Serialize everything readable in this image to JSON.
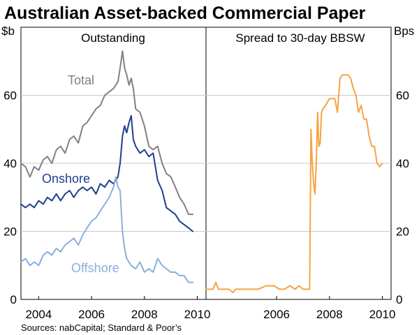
{
  "chart_data": {
    "type": "line",
    "title": "Australian Asset-backed Commercial Paper",
    "source": "Sources: nabCapital; Standard & Poor’s",
    "left_unit": "$b",
    "right_unit": "Bps",
    "y_ticks": [
      "0",
      "20",
      "40",
      "60"
    ],
    "y_tick_values": [
      0,
      20,
      40,
      60
    ],
    "ylim": [
      0,
      80
    ],
    "panels": [
      {
        "title": "Outstanding",
        "xlim": [
          2003.33,
          2010.33
        ],
        "x_ticks": [
          "2004",
          "2006",
          "2008",
          "2010"
        ],
        "x_tick_values": [
          2004,
          2006,
          2008,
          2010
        ],
        "series": [
          {
            "name": "Total",
            "color": "#808080",
            "x": [
              2003.33,
              2003.5,
              2003.67,
              2003.83,
              2004.0,
              2004.17,
              2004.33,
              2004.5,
              2004.67,
              2004.83,
              2005.0,
              2005.17,
              2005.33,
              2005.5,
              2005.67,
              2005.83,
              2006.0,
              2006.17,
              2006.33,
              2006.5,
              2006.67,
              2006.83,
              2007.0,
              2007.08,
              2007.17,
              2007.25,
              2007.33,
              2007.42,
              2007.5,
              2007.58,
              2007.67,
              2007.83,
              2008.0,
              2008.17,
              2008.33,
              2008.5,
              2008.67,
              2008.83,
              2009.0,
              2009.17,
              2009.33,
              2009.5,
              2009.67,
              2009.83
            ],
            "values": [
              40,
              39,
              36,
              39,
              38,
              41,
              42,
              40,
              44,
              45,
              43,
              47,
              48,
              46,
              51,
              52,
              54,
              56,
              57,
              60,
              61,
              62,
              64,
              68,
              73,
              68,
              66,
              63,
              65,
              62,
              56,
              55,
              51,
              45,
              44,
              45,
              40,
              37,
              36,
              33,
              30,
              28,
              25,
              25
            ]
          },
          {
            "name": "Onshore",
            "color": "#1f3d8f",
            "x": [
              2003.33,
              2003.5,
              2003.67,
              2003.83,
              2004.0,
              2004.17,
              2004.33,
              2004.5,
              2004.67,
              2004.83,
              2005.0,
              2005.17,
              2005.33,
              2005.5,
              2005.67,
              2005.83,
              2006.0,
              2006.17,
              2006.33,
              2006.5,
              2006.67,
              2006.83,
              2007.0,
              2007.08,
              2007.17,
              2007.25,
              2007.33,
              2007.42,
              2007.5,
              2007.58,
              2007.67,
              2007.83,
              2008.0,
              2008.17,
              2008.33,
              2008.5,
              2008.67,
              2008.83,
              2009.0,
              2009.17,
              2009.33,
              2009.5,
              2009.67,
              2009.83
            ],
            "values": [
              28,
              27,
              28,
              27,
              29,
              28,
              30,
              29,
              31,
              29,
              31,
              32,
              30,
              32,
              33,
              32,
              33,
              31,
              34,
              33,
              35,
              34,
              36,
              40,
              48,
              51,
              49,
              52,
              54,
              47,
              45,
              43,
              44,
              42,
              43,
              35,
              32,
              27,
              26,
              25,
              23,
              22,
              21,
              20
            ]
          },
          {
            "name": "Offshore",
            "color": "#8aaedb",
            "x": [
              2003.33,
              2003.5,
              2003.67,
              2003.83,
              2004.0,
              2004.17,
              2004.33,
              2004.5,
              2004.67,
              2004.83,
              2005.0,
              2005.17,
              2005.33,
              2005.5,
              2005.67,
              2005.83,
              2006.0,
              2006.17,
              2006.33,
              2006.5,
              2006.67,
              2006.83,
              2006.92,
              2007.0,
              2007.08,
              2007.17,
              2007.25,
              2007.33,
              2007.5,
              2007.67,
              2007.83,
              2008.0,
              2008.17,
              2008.33,
              2008.5,
              2008.67,
              2008.83,
              2009.0,
              2009.17,
              2009.33,
              2009.5,
              2009.67,
              2009.83
            ],
            "values": [
              11,
              12,
              10,
              11,
              10,
              13,
              14,
              13,
              15,
              14,
              16,
              17,
              18,
              16,
              19,
              21,
              23,
              24,
              26,
              28,
              30,
              33,
              36,
              33,
              32,
              20,
              15,
              12,
              10,
              9,
              11,
              8,
              9,
              8,
              12,
              10,
              9,
              8,
              8,
              7,
              7,
              5,
              5
            ]
          }
        ]
      },
      {
        "title": "Spread to 30-day BBSW",
        "xlim": [
          2003.33,
          2010.33
        ],
        "x_ticks": [
          "2006",
          "2008",
          "2010"
        ],
        "x_tick_values": [
          2006,
          2008,
          2010
        ],
        "series": [
          {
            "name": "Spread",
            "color": "#f5a442",
            "x": [
              2003.33,
              2003.6,
              2003.7,
              2003.8,
              2004.0,
              2004.2,
              2004.35,
              2004.45,
              2004.6,
              2004.8,
              2005.0,
              2005.3,
              2005.6,
              2005.9,
              2006.1,
              2006.3,
              2006.5,
              2006.7,
              2006.85,
              2007.0,
              2007.15,
              2007.25,
              2007.3,
              2007.35,
              2007.4,
              2007.45,
              2007.5,
              2007.55,
              2007.6,
              2007.65,
              2007.7,
              2007.75,
              2007.85,
              2008.0,
              2008.1,
              2008.2,
              2008.3,
              2008.4,
              2008.5,
              2008.6,
              2008.7,
              2008.8,
              2008.9,
              2009.0,
              2009.1,
              2009.2,
              2009.3,
              2009.4,
              2009.5,
              2009.6,
              2009.7,
              2009.8,
              2009.9,
              2010.0
            ],
            "values": [
              3,
              3,
              5,
              3,
              3,
              3,
              2,
              3,
              3,
              3,
              3,
              3,
              4,
              4,
              3,
              3,
              4,
              3,
              4,
              3,
              3,
              3,
              50,
              40,
              34,
              31,
              40,
              55,
              45,
              46,
              55,
              56,
              57,
              59,
              59,
              59,
              55,
              65,
              66,
              66,
              66,
              65,
              62,
              60,
              55,
              57,
              53,
              53,
              48,
              45,
              45,
              40,
              39,
              40
            ]
          }
        ]
      }
    ]
  }
}
